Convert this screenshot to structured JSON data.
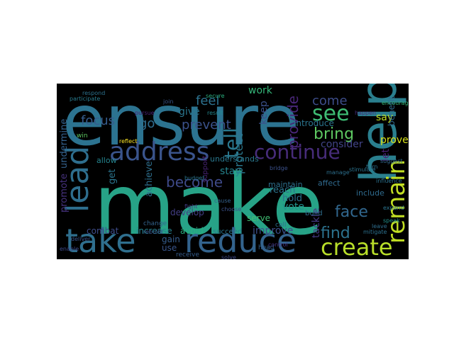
{
  "wordcloud": {
    "background": "#000000",
    "words": [
      {
        "text": "ensure",
        "color": "#2c7390",
        "rotated": false
      },
      {
        "text": "make",
        "color": "#27a387",
        "rotated": false
      },
      {
        "text": "help",
        "color": "#2a7f8e",
        "rotated": true
      },
      {
        "text": "take",
        "color": "#2f6f8e",
        "rotated": false
      },
      {
        "text": "reduce",
        "color": "#33638d",
        "rotated": false
      },
      {
        "text": "address",
        "color": "#3a548c",
        "rotated": false
      },
      {
        "text": "create",
        "color": "#b8de29",
        "rotated": false
      },
      {
        "text": "continue",
        "color": "#472c7a",
        "rotated": false
      },
      {
        "text": "lead",
        "color": "#2e6e8e",
        "rotated": true
      },
      {
        "text": "remain",
        "color": "#c2df23",
        "rotated": true
      },
      {
        "text": "see",
        "color": "#3ebc74",
        "rotated": false
      },
      {
        "text": "tell",
        "color": "#2a788e",
        "rotated": true
      },
      {
        "text": "face",
        "color": "#31678e",
        "rotated": false
      },
      {
        "text": "bring",
        "color": "#5ec962",
        "rotated": false
      },
      {
        "text": "find",
        "color": "#2c728e",
        "rotated": false
      },
      {
        "text": "become",
        "color": "#3e4a89",
        "rotated": false
      },
      {
        "text": "focus",
        "color": "#365c8d",
        "rotated": false
      },
      {
        "text": "provide",
        "color": "#482677",
        "rotated": true
      },
      {
        "text": "protect",
        "color": "#2a788e",
        "rotated": true
      },
      {
        "text": "come",
        "color": "#3d4d8a",
        "rotated": false
      },
      {
        "text": "go",
        "color": "#2f6c8e",
        "rotated": false
      },
      {
        "text": "prevent",
        "color": "#3b528b",
        "rotated": false
      },
      {
        "text": "feel",
        "color": "#2c718e",
        "rotated": false
      },
      {
        "text": "keep",
        "color": "#3b518b",
        "rotated": true
      },
      {
        "text": "tackle",
        "color": "#443983",
        "rotated": true
      },
      {
        "text": "work",
        "color": "#35b779",
        "rotated": false
      },
      {
        "text": "give",
        "color": "#2a768e",
        "rotated": false
      },
      {
        "text": "stay",
        "color": "#25848e",
        "rotated": false
      },
      {
        "text": "vote",
        "color": "#21918c",
        "rotated": false
      },
      {
        "text": "hold",
        "color": "#2d708e",
        "rotated": false
      },
      {
        "text": "reach",
        "color": "#2c738e",
        "rotated": false
      },
      {
        "text": "improve",
        "color": "#3c4f8a",
        "rotated": false
      },
      {
        "text": "consider",
        "color": "#414487",
        "rotated": false
      },
      {
        "text": "prove",
        "color": "#d8e219",
        "rotated": false
      },
      {
        "text": "say",
        "color": "#c0df25",
        "rotated": false
      },
      {
        "text": "promote",
        "color": "#46327e",
        "rotated": true
      },
      {
        "text": "get",
        "color": "#2b758e",
        "rotated": true
      },
      {
        "text": "achieve",
        "color": "#2e6f8e",
        "rotated": true
      },
      {
        "text": "undermine",
        "color": "#34618d",
        "rotated": true
      },
      {
        "text": "combat",
        "color": "#3e4c8a",
        "rotated": false
      },
      {
        "text": "increase",
        "color": "#26828e",
        "rotated": false
      },
      {
        "text": "avoid",
        "color": "#2ab07f",
        "rotated": false
      },
      {
        "text": "use",
        "color": "#39568c",
        "rotated": false
      },
      {
        "text": "gain",
        "color": "#365d8d",
        "rotated": false
      },
      {
        "text": "serve",
        "color": "#40bd72",
        "rotated": false
      },
      {
        "text": "introduce",
        "color": "#2b748e",
        "rotated": false
      },
      {
        "text": "develop",
        "color": "#433e85",
        "rotated": false
      },
      {
        "text": "include",
        "color": "#2f6b8e",
        "rotated": false
      },
      {
        "text": "benefit",
        "color": "#2f6c8e",
        "rotated": true
      },
      {
        "text": "let",
        "color": "#481f70",
        "rotated": true
      },
      {
        "text": "allow",
        "color": "#25848e",
        "rotated": false
      },
      {
        "text": "understands",
        "color": "#2a788e",
        "rotated": false
      },
      {
        "text": "affect",
        "color": "#306a8e",
        "rotated": false
      },
      {
        "text": "maintain",
        "color": "#2d708e",
        "rotated": false
      },
      {
        "text": "build",
        "color": "#2e6e8e",
        "rotated": false
      },
      {
        "text": "succeed",
        "color": "#2a768e",
        "rotated": false
      },
      {
        "text": "receive",
        "color": "#365d8d",
        "rotated": false
      },
      {
        "text": "change",
        "color": "#33638d",
        "rotated": false
      },
      {
        "text": "support",
        "color": "#482475",
        "rotated": true
      },
      {
        "text": "call",
        "color": "#2d718e",
        "rotated": false
      },
      {
        "text": "head",
        "color": "#34608d",
        "rotated": false
      },
      {
        "text": "result",
        "color": "#23888e",
        "rotated": false
      },
      {
        "text": "bridge",
        "color": "#3b518b",
        "rotated": false
      },
      {
        "text": "rebuild",
        "color": "#3a538b",
        "rotated": false
      },
      {
        "text": "deliver",
        "color": "#3a548c",
        "rotated": false
      },
      {
        "text": "encourage",
        "color": "#35b779",
        "rotated": false
      },
      {
        "text": "respond",
        "color": "#2c728e",
        "rotated": false
      },
      {
        "text": "participate",
        "color": "#297b8e",
        "rotated": false
      },
      {
        "text": "pursue",
        "color": "#482173",
        "rotated": false
      },
      {
        "text": "enable",
        "color": "#3e4989",
        "rotated": false
      },
      {
        "text": "influence",
        "color": "#2c728e",
        "rotated": false
      },
      {
        "text": "suggest",
        "color": "#31688e",
        "rotated": false
      },
      {
        "text": "fight",
        "color": "#433d84",
        "rotated": false
      },
      {
        "text": "secure",
        "color": "#2ab07f",
        "rotated": false
      },
      {
        "text": "happen",
        "color": "#472d7b",
        "rotated": false
      },
      {
        "text": "choose",
        "color": "#3b528b",
        "rotated": false
      },
      {
        "text": "speak",
        "color": "#21918c",
        "rotated": false
      },
      {
        "text": "join",
        "color": "#39568c",
        "rotated": false
      },
      {
        "text": "leave",
        "color": "#2e6e8e",
        "rotated": false
      },
      {
        "text": "turn",
        "color": "#2c728e",
        "rotated": false
      },
      {
        "text": "win",
        "color": "#5ec962",
        "rotated": false
      },
      {
        "text": "mitigate",
        "color": "#2c718e",
        "rotated": false
      },
      {
        "text": "control",
        "color": "#46307e",
        "rotated": false
      },
      {
        "text": "manage",
        "color": "#2d708e",
        "rotated": false
      },
      {
        "text": "budget",
        "color": "#2a768e",
        "rotated": false
      },
      {
        "text": "stimulate",
        "color": "#2c738e",
        "rotated": false
      },
      {
        "text": "expand",
        "color": "#2b748e",
        "rotated": false
      },
      {
        "text": "reflect",
        "color": "#fde725",
        "rotated": false
      },
      {
        "text": "cause",
        "color": "#34618d",
        "rotated": false
      },
      {
        "text": "solve",
        "color": "#3e4a89",
        "rotated": false
      }
    ]
  }
}
